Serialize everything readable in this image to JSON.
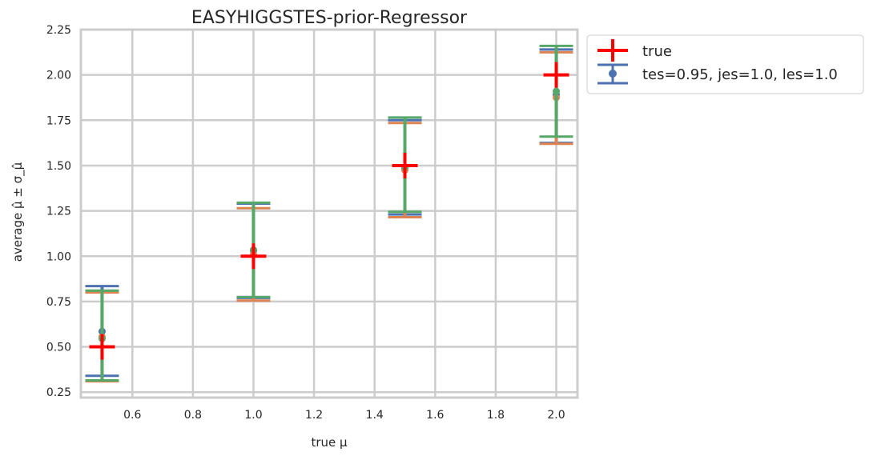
{
  "chart_data": {
    "type": "scatter",
    "title": "EASYHIGGSTES-prior-Regressor",
    "xlabel": "true μ",
    "ylabel": "average μ̂ ± σ_μ̂",
    "xlim": [
      0.43,
      2.07
    ],
    "ylim": [
      0.22,
      2.25
    ],
    "xticks": [
      "0.6",
      "0.8",
      "1.0",
      "1.2",
      "1.4",
      "1.6",
      "1.8",
      "2.0"
    ],
    "yticks": [
      "0.25",
      "0.50",
      "0.75",
      "1.00",
      "1.25",
      "1.50",
      "1.75",
      "2.00",
      "2.25"
    ],
    "grid": true,
    "legend_position": "outside-top-right",
    "legend": [
      {
        "label": "true",
        "marker": "plus",
        "color": "#ff0000"
      },
      {
        "label": "tes=0.95, jes=1.0, les=1.0",
        "marker": "errorbar",
        "color": "#4c72b0"
      }
    ],
    "true_points": {
      "x": [
        0.5,
        1.0,
        1.5,
        2.0
      ],
      "y": [
        0.5,
        1.0,
        1.5,
        2.0
      ],
      "color": "#ff0000"
    },
    "series": [
      {
        "color": "#4c72b0",
        "x": [
          0.5,
          1.0,
          1.5,
          2.0
        ],
        "y": [
          0.585,
          1.03,
          1.49,
          1.89
        ],
        "yerr_low": [
          0.34,
          0.77,
          1.23,
          1.625
        ],
        "yerr_high": [
          0.835,
          1.29,
          1.75,
          2.14
        ]
      },
      {
        "color": "#dd8452",
        "x": [
          0.5,
          1.0,
          1.5,
          2.0
        ],
        "y": [
          0.555,
          1.01,
          1.475,
          1.875
        ],
        "yerr_low": [
          0.31,
          0.755,
          1.215,
          1.62
        ],
        "yerr_high": [
          0.8,
          1.265,
          1.735,
          2.125
        ]
      },
      {
        "color": "#55a868",
        "x": [
          0.5,
          1.0,
          1.5,
          2.0
        ],
        "y": [
          0.545,
          1.035,
          1.49,
          1.91
        ],
        "yerr_low": [
          0.315,
          0.775,
          1.245,
          1.66
        ],
        "yerr_high": [
          0.81,
          1.295,
          1.765,
          2.16
        ]
      }
    ]
  }
}
